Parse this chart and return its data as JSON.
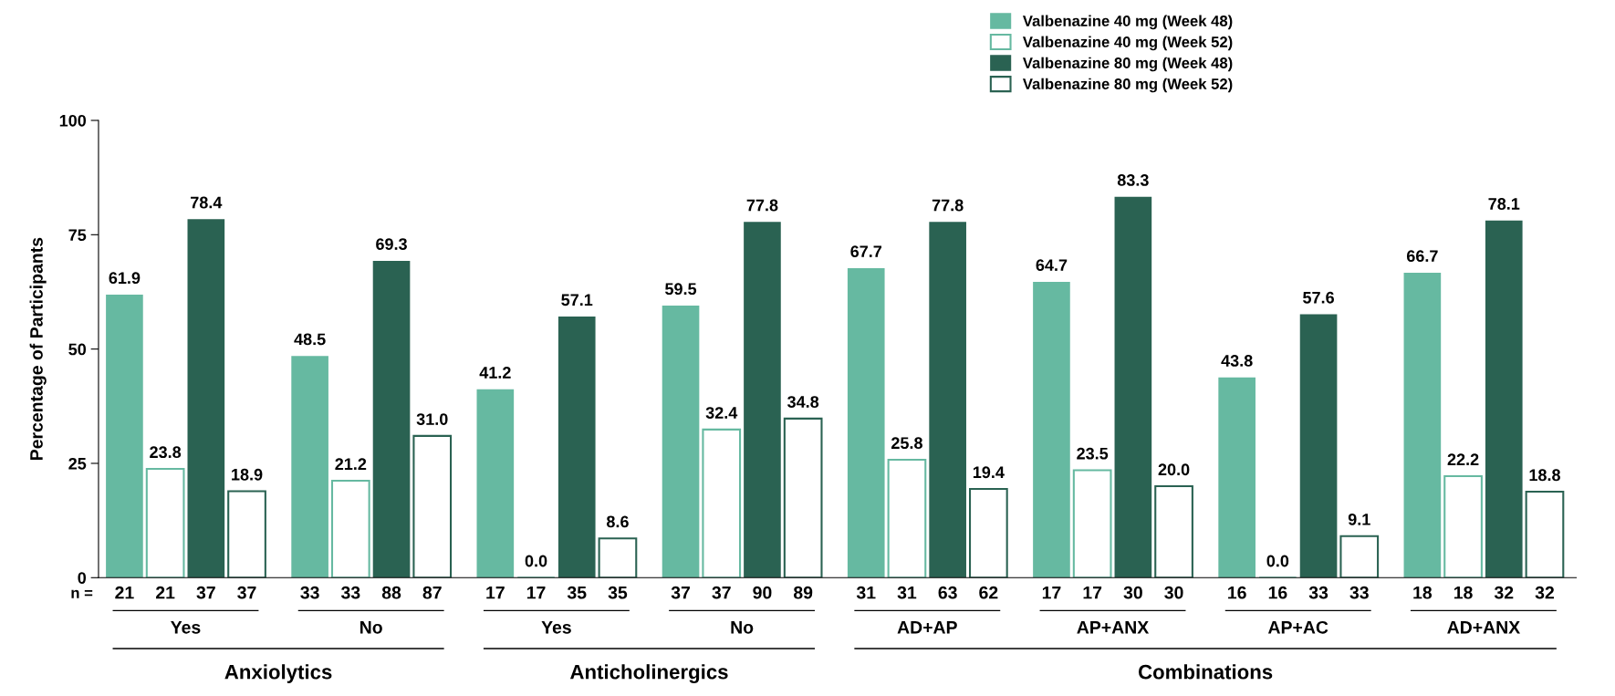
{
  "chart_data": {
    "type": "bar",
    "ylabel": "Percentage of Participants",
    "categories": [
      "Yes",
      "No",
      "Yes",
      "No",
      "AD+AP",
      "AP+ANX",
      "AP+AC",
      "AD+ANX"
    ],
    "series": [
      {
        "name": "Valbenazine 40 mg (Week 48)",
        "color": "#66b9a1",
        "values": [
          61.9,
          48.5,
          41.2,
          59.5,
          67.7,
          64.7,
          43.8,
          66.7
        ],
        "value_labels": [
          "61.9",
          "48.5",
          "41.2",
          "59.5",
          "67.7",
          "64.7",
          "43.8",
          "66.7"
        ]
      },
      {
        "name": "Valbenazine 40 mg (Week 52)",
        "color": "#66b9a1",
        "values": [
          23.8,
          21.2,
          0,
          32.4,
          25.8,
          23.5,
          0,
          22.2
        ],
        "value_labels": [
          "23.8",
          "21.2",
          "0.0",
          "32.4",
          "25.8",
          "23.5",
          "0.0",
          "22.2"
        ]
      },
      {
        "name": "Valbenazine 80 mg (Week 48)",
        "color": "#2a6252",
        "values": [
          78.4,
          69.3,
          57.1,
          77.8,
          77.8,
          83.3,
          57.6,
          78.1
        ],
        "value_labels": [
          "78.4",
          "69.3",
          "57.1",
          "77.8",
          "77.8",
          "83.3",
          "57.6",
          "78.1"
        ]
      },
      {
        "name": "Valbenazine 80 mg (Week 52)",
        "color": "#2a6252",
        "values": [
          18.9,
          31,
          8.6,
          34.8,
          19.4,
          20,
          9.1,
          18.8
        ],
        "value_labels": [
          "18.9",
          "31.0",
          "8.6",
          "34.8",
          "19.4",
          "20.0",
          "9.1",
          "18.8"
        ]
      }
    ],
    "ylim": [
      0,
      100
    ],
    "yticks": [
      0,
      25,
      50,
      75,
      100
    ],
    "grid": false,
    "legend": "top right",
    "annotations": [
      "n =",
      "21",
      "21",
      "37",
      "37",
      "33",
      "33",
      "88",
      "87",
      "17",
      "17",
      "35",
      "35",
      "37",
      "37",
      "90",
      "89",
      "31",
      "31",
      "63",
      "62",
      "17",
      "17",
      "30",
      "30",
      "16",
      "16",
      "33",
      "33",
      "18",
      "18",
      "32",
      "32",
      "Anxiolytics",
      "Anticholinergics",
      "Combinations"
    ]
  }
}
